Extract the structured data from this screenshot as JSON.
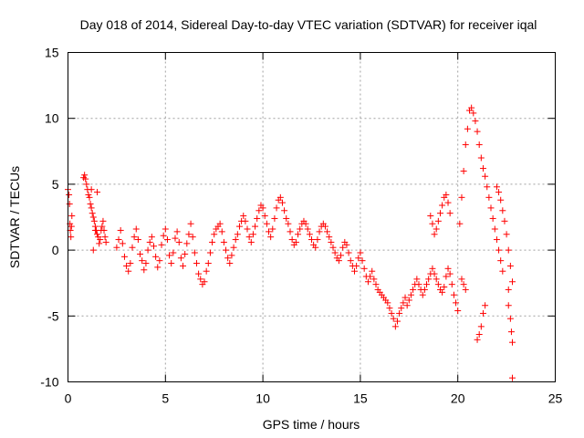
{
  "chart_data": {
    "type": "scatter",
    "title": "Day 018 of 2014, Sidereal Day-to-day VTEC variation (SDTVAR) for receiver iqal",
    "xlabel": "GPS time / hours",
    "ylabel": "SDTVAR / TECUs",
    "xlim": [
      0,
      25
    ],
    "ylim": [
      -10,
      15
    ],
    "xticks": [
      0,
      5,
      10,
      15,
      20,
      25
    ],
    "yticks": [
      -10,
      -5,
      0,
      5,
      10,
      15
    ],
    "xtick_labels": [
      "0",
      "5",
      "10",
      "15",
      "20",
      "25"
    ],
    "ytick_labels": [
      "-10",
      "-5",
      "0",
      "5",
      "10",
      "15"
    ],
    "grid": true,
    "marker": "+",
    "color": "#ff0000",
    "series": [
      {
        "name": "SDTVAR",
        "points": [
          [
            0.0,
            4.6
          ],
          [
            0.05,
            4.2
          ],
          [
            0.08,
            3.5
          ],
          [
            0.1,
            2.0
          ],
          [
            0.12,
            1.5
          ],
          [
            0.15,
            1.0
          ],
          [
            0.18,
            1.8
          ],
          [
            0.2,
            2.6
          ],
          [
            0.8,
            5.5
          ],
          [
            0.85,
            5.7
          ],
          [
            0.9,
            5.4
          ],
          [
            0.95,
            5.0
          ],
          [
            1.0,
            4.6
          ],
          [
            1.05,
            4.2
          ],
          [
            1.1,
            4.0
          ],
          [
            1.15,
            3.5
          ],
          [
            1.2,
            3.2
          ],
          [
            1.25,
            2.8
          ],
          [
            1.3,
            2.5
          ],
          [
            1.35,
            2.2
          ],
          [
            1.4,
            1.8
          ],
          [
            1.45,
            1.5
          ],
          [
            1.5,
            1.2
          ],
          [
            1.55,
            1.0
          ],
          [
            1.6,
            0.5
          ],
          [
            1.65,
            0.8
          ],
          [
            1.7,
            1.5
          ],
          [
            1.75,
            1.8
          ],
          [
            1.8,
            2.2
          ],
          [
            1.85,
            1.5
          ],
          [
            1.9,
            1.0
          ],
          [
            1.95,
            0.6
          ],
          [
            1.3,
            0.0
          ],
          [
            1.5,
            4.4
          ],
          [
            1.4,
            1.5
          ],
          [
            1.2,
            4.6
          ],
          [
            2.5,
            0.2
          ],
          [
            2.6,
            0.8
          ],
          [
            2.7,
            1.5
          ],
          [
            2.8,
            0.5
          ],
          [
            2.9,
            -0.5
          ],
          [
            3.0,
            -1.2
          ],
          [
            3.1,
            -1.6
          ],
          [
            3.2,
            -1.0
          ],
          [
            3.3,
            0.2
          ],
          [
            3.4,
            1.0
          ],
          [
            3.5,
            1.6
          ],
          [
            3.6,
            0.8
          ],
          [
            3.7,
            -0.3
          ],
          [
            3.8,
            -0.8
          ],
          [
            3.9,
            -1.5
          ],
          [
            4.0,
            -1.0
          ],
          [
            4.1,
            0.0
          ],
          [
            4.2,
            0.6
          ],
          [
            4.3,
            1.0
          ],
          [
            4.4,
            0.3
          ],
          [
            4.5,
            -0.5
          ],
          [
            4.6,
            -1.3
          ],
          [
            4.7,
            -0.8
          ],
          [
            4.8,
            0.4
          ],
          [
            4.9,
            1.1
          ],
          [
            5.0,
            1.6
          ],
          [
            5.1,
            0.8
          ],
          [
            5.2,
            -0.4
          ],
          [
            5.3,
            -1.0
          ],
          [
            5.4,
            -0.2
          ],
          [
            5.5,
            0.9
          ],
          [
            5.6,
            1.4
          ],
          [
            5.7,
            0.6
          ],
          [
            5.8,
            -0.6
          ],
          [
            5.9,
            -1.2
          ],
          [
            6.0,
            -0.3
          ],
          [
            6.1,
            0.5
          ],
          [
            6.2,
            1.2
          ],
          [
            6.3,
            2.0
          ],
          [
            6.4,
            1.0
          ],
          [
            6.5,
            -0.2
          ],
          [
            6.6,
            -1.0
          ],
          [
            6.7,
            -1.8
          ],
          [
            6.8,
            -2.2
          ],
          [
            6.9,
            -2.6
          ],
          [
            7.0,
            -2.4
          ],
          [
            7.1,
            -1.6
          ],
          [
            7.2,
            -1.0
          ],
          [
            7.3,
            -0.2
          ],
          [
            7.4,
            0.6
          ],
          [
            7.5,
            1.2
          ],
          [
            7.6,
            1.6
          ],
          [
            7.7,
            1.8
          ],
          [
            7.8,
            2.0
          ],
          [
            7.9,
            1.4
          ],
          [
            8.0,
            0.6
          ],
          [
            8.1,
            0.0
          ],
          [
            8.2,
            -0.6
          ],
          [
            8.3,
            -1.0
          ],
          [
            8.4,
            -0.4
          ],
          [
            8.5,
            0.2
          ],
          [
            8.6,
            0.8
          ],
          [
            8.7,
            1.2
          ],
          [
            8.8,
            1.8
          ],
          [
            8.9,
            2.2
          ],
          [
            9.0,
            2.6
          ],
          [
            9.1,
            2.2
          ],
          [
            9.2,
            1.6
          ],
          [
            9.3,
            1.0
          ],
          [
            9.4,
            0.6
          ],
          [
            9.5,
            1.2
          ],
          [
            9.6,
            1.8
          ],
          [
            9.7,
            2.4
          ],
          [
            9.8,
            3.0
          ],
          [
            9.9,
            3.4
          ],
          [
            10.0,
            3.2
          ],
          [
            10.1,
            2.6
          ],
          [
            10.2,
            2.0
          ],
          [
            10.3,
            1.4
          ],
          [
            10.4,
            1.0
          ],
          [
            10.5,
            1.6
          ],
          [
            10.6,
            2.4
          ],
          [
            10.7,
            3.2
          ],
          [
            10.8,
            3.8
          ],
          [
            10.9,
            4.0
          ],
          [
            11.0,
            3.6
          ],
          [
            11.1,
            3.0
          ],
          [
            11.2,
            2.4
          ],
          [
            11.3,
            2.0
          ],
          [
            11.4,
            1.4
          ],
          [
            11.5,
            0.8
          ],
          [
            11.6,
            0.4
          ],
          [
            11.7,
            0.6
          ],
          [
            11.8,
            1.2
          ],
          [
            11.9,
            1.6
          ],
          [
            12.0,
            2.0
          ],
          [
            12.1,
            2.2
          ],
          [
            12.2,
            2.0
          ],
          [
            12.3,
            1.6
          ],
          [
            12.4,
            1.2
          ],
          [
            12.5,
            0.8
          ],
          [
            12.6,
            0.4
          ],
          [
            12.7,
            0.2
          ],
          [
            12.8,
            0.8
          ],
          [
            12.9,
            1.4
          ],
          [
            13.0,
            1.8
          ],
          [
            13.1,
            2.0
          ],
          [
            13.2,
            1.8
          ],
          [
            13.3,
            1.4
          ],
          [
            13.4,
            1.0
          ],
          [
            13.5,
            0.6
          ],
          [
            13.6,
            0.2
          ],
          [
            13.7,
            -0.2
          ],
          [
            13.8,
            -0.6
          ],
          [
            13.9,
            -0.8
          ],
          [
            14.0,
            -0.4
          ],
          [
            14.1,
            0.2
          ],
          [
            14.2,
            0.6
          ],
          [
            14.3,
            0.4
          ],
          [
            14.4,
            -0.2
          ],
          [
            14.5,
            -0.8
          ],
          [
            14.6,
            -1.2
          ],
          [
            14.7,
            -1.6
          ],
          [
            14.8,
            -1.2
          ],
          [
            14.9,
            -0.6
          ],
          [
            15.0,
            -0.2
          ],
          [
            15.1,
            -0.8
          ],
          [
            15.2,
            -1.4
          ],
          [
            15.3,
            -2.0
          ],
          [
            15.4,
            -2.4
          ],
          [
            15.5,
            -2.0
          ],
          [
            15.6,
            -1.6
          ],
          [
            15.7,
            -2.2
          ],
          [
            15.8,
            -2.6
          ],
          [
            15.9,
            -3.0
          ],
          [
            16.0,
            -3.2
          ],
          [
            16.1,
            -3.4
          ],
          [
            16.2,
            -3.6
          ],
          [
            16.3,
            -3.8
          ],
          [
            16.4,
            -4.0
          ],
          [
            16.5,
            -4.4
          ],
          [
            16.6,
            -4.8
          ],
          [
            16.7,
            -5.2
          ],
          [
            16.8,
            -5.8
          ],
          [
            16.9,
            -5.4
          ],
          [
            17.0,
            -4.8
          ],
          [
            17.1,
            -4.4
          ],
          [
            17.2,
            -4.0
          ],
          [
            17.3,
            -3.6
          ],
          [
            17.4,
            -4.2
          ],
          [
            17.5,
            -3.8
          ],
          [
            17.6,
            -3.4
          ],
          [
            17.7,
            -3.0
          ],
          [
            17.8,
            -2.6
          ],
          [
            17.9,
            -2.2
          ],
          [
            18.0,
            -2.6
          ],
          [
            18.1,
            -3.0
          ],
          [
            18.2,
            -3.4
          ],
          [
            18.3,
            -3.0
          ],
          [
            18.4,
            -2.6
          ],
          [
            18.5,
            -2.2
          ],
          [
            18.6,
            -1.8
          ],
          [
            18.7,
            -1.4
          ],
          [
            18.8,
            -1.8
          ],
          [
            18.9,
            -2.2
          ],
          [
            19.0,
            -2.6
          ],
          [
            19.1,
            -3.0
          ],
          [
            19.2,
            -3.2
          ],
          [
            19.3,
            -2.8
          ],
          [
            19.4,
            -2.0
          ],
          [
            19.5,
            -1.4
          ],
          [
            19.6,
            -1.8
          ],
          [
            19.7,
            -2.6
          ],
          [
            19.8,
            -3.4
          ],
          [
            19.9,
            -4.0
          ],
          [
            20.0,
            -4.6
          ],
          [
            18.6,
            2.6
          ],
          [
            18.7,
            2.0
          ],
          [
            18.8,
            1.2
          ],
          [
            18.9,
            1.6
          ],
          [
            19.0,
            2.2
          ],
          [
            19.1,
            2.8
          ],
          [
            19.2,
            3.4
          ],
          [
            19.3,
            4.0
          ],
          [
            19.4,
            4.2
          ],
          [
            19.5,
            3.6
          ],
          [
            19.6,
            2.8
          ],
          [
            20.2,
            -2.2
          ],
          [
            20.3,
            -2.6
          ],
          [
            20.4,
            -3.0
          ],
          [
            20.1,
            2.0
          ],
          [
            20.2,
            4.0
          ],
          [
            20.3,
            6.0
          ],
          [
            20.4,
            8.0
          ],
          [
            20.5,
            9.2
          ],
          [
            20.6,
            10.6
          ],
          [
            20.7,
            10.8
          ],
          [
            20.8,
            10.4
          ],
          [
            20.9,
            9.8
          ],
          [
            21.0,
            9.0
          ],
          [
            21.1,
            8.0
          ],
          [
            21.2,
            7.0
          ],
          [
            21.3,
            6.2
          ],
          [
            21.4,
            5.6
          ],
          [
            21.5,
            4.8
          ],
          [
            21.6,
            4.0
          ],
          [
            21.7,
            3.2
          ],
          [
            21.8,
            2.4
          ],
          [
            21.9,
            1.6
          ],
          [
            22.0,
            0.8
          ],
          [
            22.1,
            0.0
          ],
          [
            22.2,
            -0.8
          ],
          [
            22.3,
            -1.6
          ],
          [
            21.0,
            -6.8
          ],
          [
            21.1,
            -6.4
          ],
          [
            21.2,
            -5.8
          ],
          [
            21.3,
            -4.8
          ],
          [
            21.4,
            -4.2
          ],
          [
            22.0,
            4.8
          ],
          [
            22.1,
            4.4
          ],
          [
            22.2,
            3.8
          ],
          [
            22.3,
            3.0
          ],
          [
            22.4,
            2.2
          ],
          [
            22.5,
            1.2
          ],
          [
            22.6,
            0.0
          ],
          [
            22.7,
            -1.2
          ],
          [
            22.8,
            -2.4
          ],
          [
            22.6,
            -4.2
          ],
          [
            22.7,
            -5.2
          ],
          [
            22.75,
            -6.2
          ],
          [
            22.8,
            -7.0
          ],
          [
            22.6,
            -3.0
          ],
          [
            22.8,
            -9.7
          ]
        ]
      }
    ]
  }
}
